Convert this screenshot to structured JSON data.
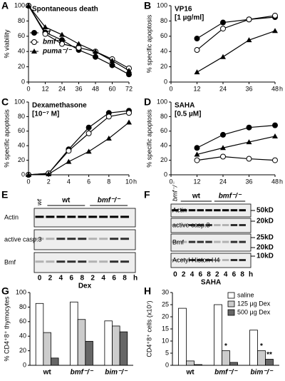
{
  "chart_data": [
    {
      "type": "line",
      "panel": "A",
      "title": "Spontaneous death",
      "ylabel": "% viability",
      "x": [
        0,
        12,
        24,
        36,
        48,
        60,
        72
      ],
      "xlim": [
        0,
        72
      ],
      "xticks": [
        0,
        12,
        24,
        36,
        48,
        60,
        72
      ],
      "ylim": [
        0,
        100
      ],
      "yticks": [
        0,
        20,
        40,
        60,
        80,
        100
      ],
      "legend": "left",
      "series": [
        {
          "name": "wt",
          "color": "#000000",
          "marker": "filled-circle",
          "values": [
            100,
            65,
            55,
            42,
            33,
            22,
            10
          ]
        },
        {
          "name": "bmf⁻/⁻",
          "color": "#000000",
          "marker": "open-circle",
          "values": [
            100,
            63,
            50,
            45,
            40,
            30,
            18
          ]
        },
        {
          "name": "puma⁻/⁻",
          "color": "#000000",
          "marker": "triangle",
          "values": [
            100,
            72,
            62,
            50,
            40,
            28,
            15
          ]
        }
      ]
    },
    {
      "type": "line",
      "panel": "B",
      "title": "VP16",
      "subtitle": "[1 µg/ml]",
      "ylabel": "% specific apoptosis",
      "xlabel": "h",
      "x": [
        12,
        24,
        36,
        48
      ],
      "xlim": [
        0,
        48
      ],
      "xticks": [
        0,
        12,
        24,
        36,
        48
      ],
      "ylim": [
        0,
        100
      ],
      "yticks": [
        0,
        20,
        40,
        60,
        80,
        100
      ],
      "series": [
        {
          "name": "wt",
          "color": "#000000",
          "marker": "filled-circle",
          "values": [
            57,
            78,
            82,
            85
          ]
        },
        {
          "name": "bmf⁻/⁻",
          "color": "#000000",
          "marker": "open-circle",
          "values": [
            42,
            70,
            82,
            87
          ]
        },
        {
          "name": "puma⁻/⁻",
          "color": "#000000",
          "marker": "triangle",
          "values": [
            13,
            33,
            55,
            67
          ]
        }
      ]
    },
    {
      "type": "line",
      "panel": "C",
      "title": "Dexamethasone",
      "subtitle": "[10⁻⁷ M]",
      "ylabel": "% specific apoptosis",
      "xlabel": "h",
      "x": [
        0,
        2,
        4,
        6,
        8,
        10
      ],
      "xlim": [
        0,
        10
      ],
      "xticks": [
        0,
        2,
        4,
        6,
        8,
        10
      ],
      "ylim": [
        0,
        100
      ],
      "yticks": [
        0,
        20,
        40,
        60,
        80,
        100
      ],
      "series": [
        {
          "name": "wt",
          "color": "#000000",
          "marker": "filled-circle",
          "values": [
            0,
            2,
            35,
            65,
            85,
            88
          ]
        },
        {
          "name": "bmf⁻/⁻",
          "color": "#000000",
          "marker": "open-circle",
          "values": [
            0,
            2,
            33,
            57,
            80,
            85
          ]
        },
        {
          "name": "puma⁻/⁻",
          "color": "#000000",
          "marker": "triangle",
          "values": [
            0,
            1,
            18,
            32,
            50,
            72
          ]
        }
      ]
    },
    {
      "type": "line",
      "panel": "D",
      "title": "SAHA",
      "subtitle": "[0.5 µM]",
      "ylabel": "% specific apoptosis",
      "xlabel": "h",
      "x": [
        12,
        24,
        36,
        48
      ],
      "xlim": [
        0,
        48
      ],
      "xticks": [
        0,
        12,
        24,
        36,
        48
      ],
      "ylim": [
        0,
        100
      ],
      "yticks": [
        0,
        20,
        40,
        60,
        80,
        100
      ],
      "series": [
        {
          "name": "wt",
          "color": "#000000",
          "marker": "filled-circle",
          "values": [
            37,
            55,
            65,
            68
          ]
        },
        {
          "name": "bmf⁻/⁻",
          "color": "#000000",
          "marker": "open-circle",
          "values": [
            20,
            25,
            22,
            20
          ]
        },
        {
          "name": "puma⁻/⁻",
          "color": "#000000",
          "marker": "triangle",
          "values": [
            28,
            37,
            45,
            53
          ]
        }
      ]
    },
    {
      "type": "bar",
      "panel": "G",
      "ylabel": "% CD4⁺8⁺ thymocytes",
      "categories": [
        "wt",
        "bmf⁻/⁻",
        "bim⁻/⁻"
      ],
      "ylim": [
        0,
        100
      ],
      "yticks": [
        0,
        20,
        40,
        60,
        80,
        100
      ],
      "series": [
        {
          "name": "saline",
          "color": "#ffffff",
          "values": [
            85,
            87,
            61
          ]
        },
        {
          "name": "125 µg Dex",
          "color": "#cccccc",
          "values": [
            45,
            63,
            54
          ]
        },
        {
          "name": "500 µg Dex",
          "color": "#666666",
          "values": [
            10,
            33,
            46
          ]
        }
      ]
    },
    {
      "type": "bar",
      "panel": "H",
      "ylabel": "CD4⁺8⁺ cells (x10⁷)",
      "legend": "top-right",
      "categories": [
        "wt",
        "bmf⁻/⁻",
        "bim⁻/⁻"
      ],
      "ylim": [
        0,
        30
      ],
      "yticks": [
        0,
        5,
        10,
        15,
        20,
        25,
        30
      ],
      "series": [
        {
          "name": "saline",
          "color": "#ffffff",
          "values": [
            23.5,
            25,
            14.5
          ]
        },
        {
          "name": "125 µg Dex",
          "color": "#cccccc",
          "values": [
            1.8,
            6,
            6
          ]
        },
        {
          "name": "500 µg Dex",
          "color": "#666666",
          "values": [
            0.3,
            1.2,
            2.5
          ]
        }
      ],
      "annotations": [
        {
          "text": "*",
          "category": "bmf⁻/⁻",
          "series": "125 µg Dex"
        },
        {
          "text": "*",
          "category": "bim⁻/⁻",
          "series": "125 µg Dex"
        },
        {
          "text": "**",
          "category": "bim⁻/⁻",
          "series": "500 µg Dex"
        }
      ]
    }
  ],
  "blots": {
    "E": {
      "panel": "E",
      "side_label": "wt",
      "groups": [
        "wt",
        "bmf⁻/⁻"
      ],
      "rows": [
        "Actin",
        "active casp.3",
        "Bmf"
      ],
      "lanes": [
        "0",
        "2",
        "4",
        "6",
        "8",
        "2",
        "4",
        "6",
        "8",
        "h"
      ],
      "xlabel": "Dex"
    },
    "F": {
      "panel": "F",
      "side_label": "bmf⁻/⁻",
      "groups": [
        "wt",
        "bmf⁻/⁻"
      ],
      "rows": [
        "Actin",
        "active casp.3",
        "Bmf",
        "Acetyl Histon H4"
      ],
      "markers": [
        "50kD",
        "20kD",
        "25kD",
        "20kD",
        "10kD"
      ],
      "lanes": [
        "0",
        "2",
        "4",
        "6",
        "8",
        "2",
        "4",
        "6",
        "8",
        "h"
      ],
      "xlabel": "SAHA"
    }
  }
}
